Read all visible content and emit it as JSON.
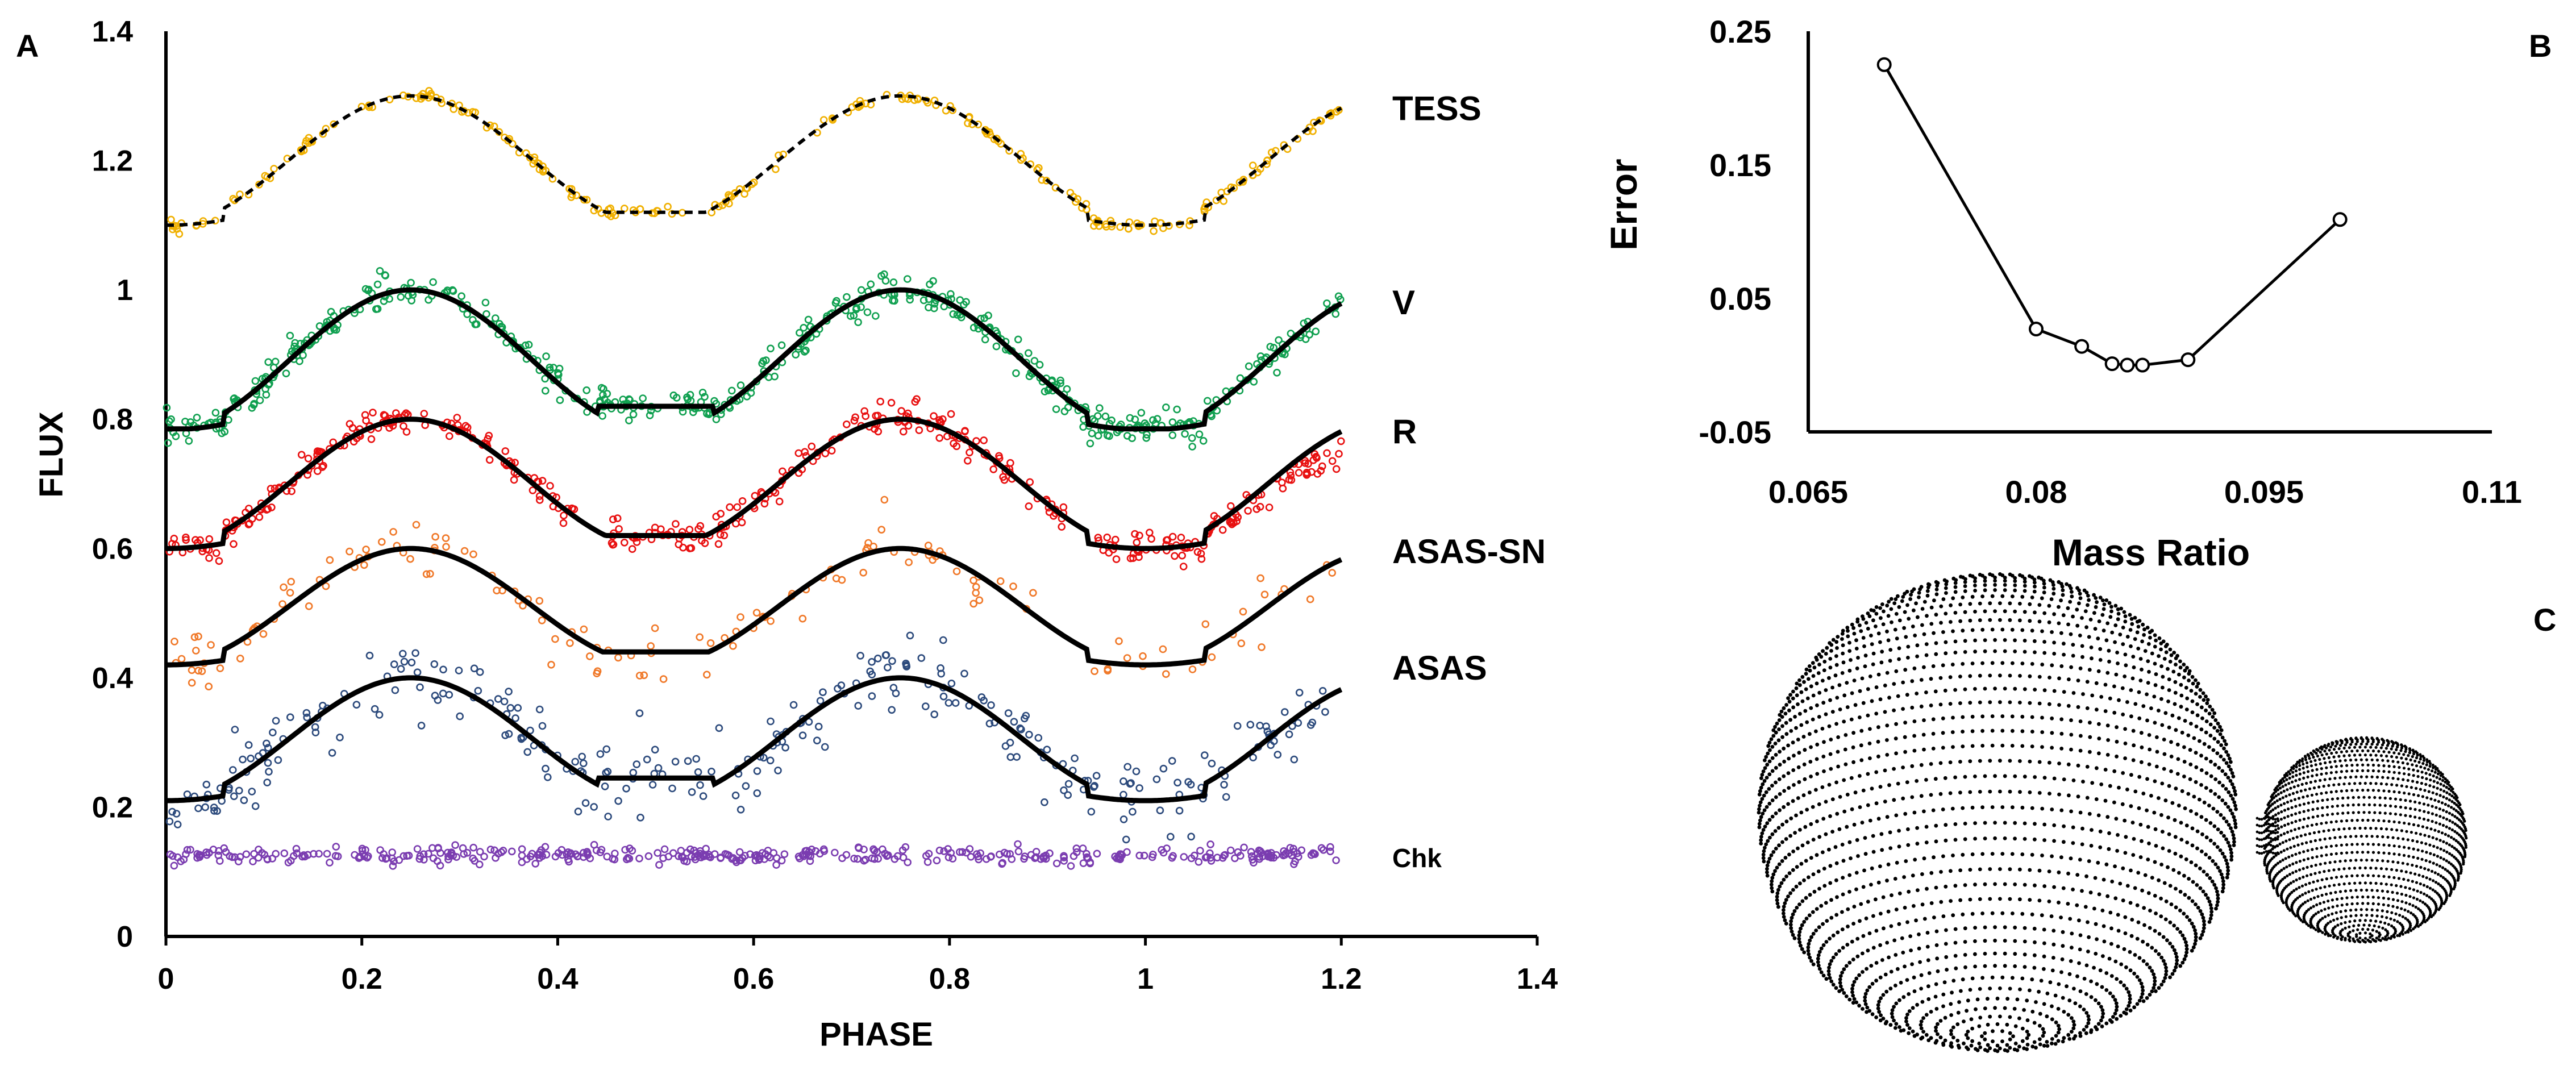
{
  "chart_data": [
    {
      "panel": "A",
      "type": "scatter",
      "xlabel": "PHASE",
      "ylabel": "FLUX",
      "xlim": [
        0,
        1.4
      ],
      "ylim": [
        0,
        1.4
      ],
      "xticks": [
        "0",
        "0.2",
        "0.4",
        "0.6",
        "0.8",
        "1",
        "1.2",
        "1.4"
      ],
      "yticks": [
        "0",
        "0.2",
        "0.4",
        "0.6",
        "0.8",
        "1",
        "1.2",
        "1.4"
      ],
      "phase_range": [
        0,
        1.2
      ],
      "model_line_color": "#000000",
      "series": [
        {
          "name": "TESS",
          "base": 1.1,
          "amplitude": 0.2,
          "primary_min": 1.1,
          "secondary_min": 1.12,
          "scatter": 0.004,
          "color": "#f0b000",
          "line_style": "dashed"
        },
        {
          "name": "V",
          "base": 0.78,
          "amplitude": 0.22,
          "primary_min": 0.785,
          "secondary_min": 0.82,
          "scatter": 0.012,
          "color": "#10a050",
          "line_style": "solid"
        },
        {
          "name": "R",
          "base": 0.6,
          "amplitude": 0.2,
          "primary_min": 0.6,
          "secondary_min": 0.62,
          "scatter": 0.012,
          "color": "#e81010",
          "line_style": "solid"
        },
        {
          "name": "ASAS-SN",
          "base": 0.42,
          "amplitude": 0.18,
          "primary_min": 0.42,
          "secondary_min": 0.44,
          "scatter": 0.022,
          "color": "#f07828",
          "line_style": "solid"
        },
        {
          "name": "ASAS",
          "base": 0.21,
          "amplitude": 0.19,
          "primary_min": 0.21,
          "secondary_min": 0.245,
          "scatter": 0.03,
          "color": "#2c4a7c",
          "line_style": "solid"
        },
        {
          "name": "Chk",
          "base": 0.125,
          "amplitude": 0,
          "scatter": 0.006,
          "color": "#7a3cb0",
          "line_style": "none"
        }
      ]
    },
    {
      "panel": "B",
      "type": "line",
      "xlabel": "Mass Ratio",
      "ylabel": "Error",
      "xlim": [
        0.065,
        0.11
      ],
      "ylim": [
        -0.05,
        0.25
      ],
      "xticks": [
        "0.065",
        "0.08",
        "0.095",
        "0.11"
      ],
      "yticks": [
        "0.25",
        "0.15",
        "0.05",
        "-0.05"
      ],
      "x": [
        0.07,
        0.08,
        0.083,
        0.085,
        0.086,
        0.087,
        0.09,
        0.1
      ],
      "y": [
        0.225,
        0.027,
        0.014,
        0.001,
        0.0,
        0.0,
        0.004,
        0.109
      ]
    }
  ],
  "panel_c": {
    "label": "C",
    "description": "3D dot model of a contact binary (large primary, small secondary joined by neck)"
  },
  "labels": {
    "a": "A",
    "b": "B",
    "c": "C"
  }
}
